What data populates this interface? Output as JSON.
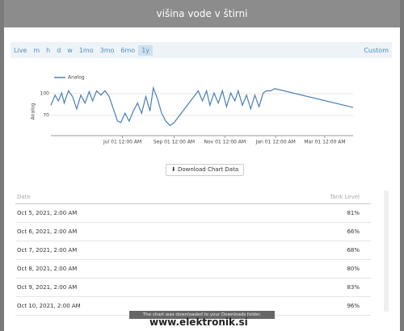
{
  "modal": {
    "title": "višina vode v štirni"
  },
  "ranges": [
    "Live",
    "m",
    "h",
    "d",
    "w",
    "1mo",
    "3mo",
    "6mo",
    "1y"
  ],
  "custom": "Custom",
  "chart": {
    "type": "line",
    "y_label": "Analog",
    "series": [
      {
        "name": "Analog",
        "color": "#4a7fb5",
        "x": [
          -56,
          -51,
          -47,
          -43,
          -40,
          -35,
          -30,
          -25,
          -20,
          -15,
          -10,
          -6,
          -1,
          4,
          9,
          14,
          19,
          24,
          28,
          33,
          38,
          43,
          48,
          53,
          58,
          63,
          67,
          72,
          77,
          82,
          87,
          92,
          121,
          126,
          131,
          135,
          140,
          145,
          150,
          155,
          160,
          165,
          169,
          174,
          179,
          184,
          189,
          194,
          199,
          203,
          208,
          213,
          307
        ],
        "values": [
          84,
          98,
          90,
          101,
          87,
          104,
          96,
          79,
          98,
          87,
          103,
          90,
          104,
          98,
          104,
          96,
          79,
          62,
          60,
          73,
          62,
          76,
          87,
          73,
          96,
          76,
          108,
          93,
          73,
          62,
          56,
          60,
          104,
          90,
          104,
          84,
          101,
          87,
          104,
          82,
          101,
          90,
          104,
          84,
          98,
          79,
          98,
          82,
          101,
          104,
          104,
          107,
          81
        ]
      }
    ],
    "xlim": [
      -56,
      307
    ],
    "ylim": [
      42,
      109
    ],
    "xticks": [
      {
        "value": 30,
        "label": "Jul 01 12:00 AM"
      },
      {
        "value": 92,
        "label": "Sep 01 12:00 AM"
      },
      {
        "value": 153,
        "label": "Nov 01 12:00 AM"
      },
      {
        "value": 214,
        "label": "Jan 01 12:00 AM"
      },
      {
        "value": 273,
        "label": "Mar 01 12:00 AM"
      }
    ],
    "yticks": [
      70,
      100
    ],
    "grid": true
  },
  "download_button": "Download Chart Data",
  "table": {
    "columns": [
      "Date",
      "Tank Level"
    ],
    "rows": [
      [
        "Oct 5, 2021, 2:00 AM",
        "81%"
      ],
      [
        "Oct 6, 2021, 2:00 AM",
        "66%"
      ],
      [
        "Oct 7, 2021, 2:00 AM",
        "68%"
      ],
      [
        "Oct 8, 2021, 2:00 AM",
        "80%"
      ],
      [
        "Oct 9, 2021, 2:00 AM",
        "83%"
      ],
      [
        "Oct 10, 2021, 2:00 AM",
        "96%"
      ]
    ]
  },
  "toast": "The chart was downloaded to your Downloads folder.",
  "watermark": "www.elektronik.si"
}
